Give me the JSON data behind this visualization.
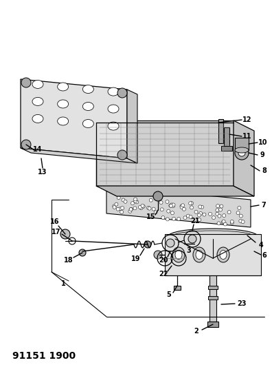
{
  "title": "91151 1900",
  "title_fontsize": 10,
  "title_fontweight": "bold",
  "bg_color": "#ffffff",
  "line_color": "#000000",
  "fig_width": 3.96,
  "fig_height": 5.33,
  "dpi": 100
}
